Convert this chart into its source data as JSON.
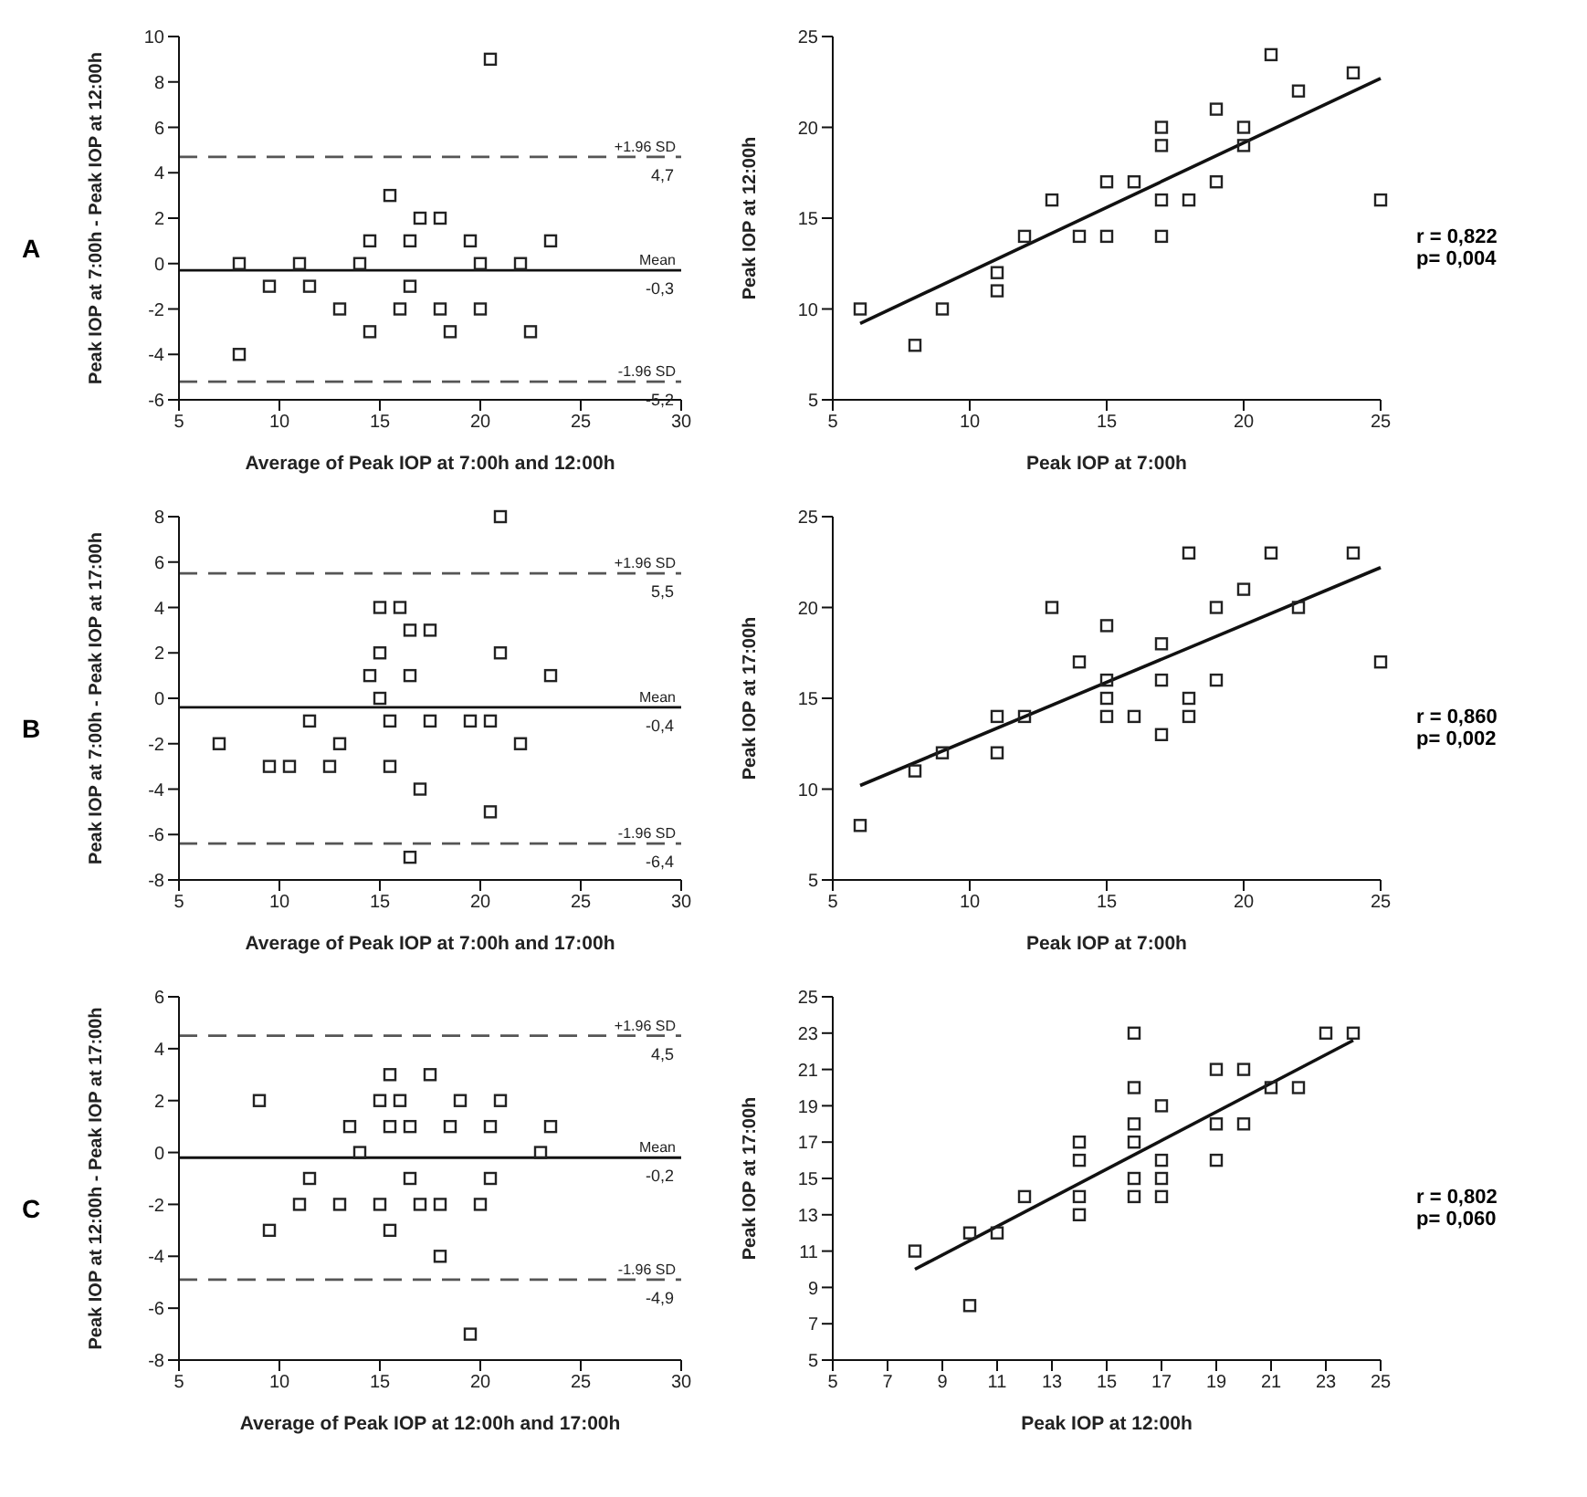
{
  "chart_data": [
    {
      "type": "scatter",
      "xlabel": "Average of Peak IOP at 7:00h and 12:00h",
      "ylabel": "Peak IOP at 7:00h - Peak IOP at 12:00h",
      "xlim": [
        5,
        30
      ],
      "xticks": [
        5,
        10,
        15,
        20,
        25,
        30
      ],
      "ylim": [
        -6,
        10
      ],
      "yticks": [
        -6,
        -4,
        -2,
        0,
        2,
        4,
        6,
        8,
        10
      ],
      "marker": "square",
      "series": [
        {
          "type": "scatter",
          "color": "#222222",
          "x": [
            8,
            8,
            9.5,
            11,
            11.5,
            13,
            14,
            14.5,
            14.5,
            15.5,
            16,
            16.5,
            16.5,
            17,
            18,
            18,
            18.5,
            19.5,
            20,
            20,
            20.5,
            22,
            22.5,
            23.5
          ],
          "values": [
            0,
            -4,
            -1,
            0,
            -1,
            -2,
            0,
            1,
            -3,
            3,
            -2,
            1,
            -1,
            2,
            2,
            -2,
            -3,
            1,
            0,
            -2,
            9,
            0,
            -3,
            1
          ]
        }
      ],
      "ref_lines": [
        {
          "axis": "y",
          "value": 4.7,
          "label": "+1.96 SD",
          "color": "#555555",
          "line_style": "dashed"
        },
        {
          "axis": "y",
          "value": -0.3,
          "label": "Mean",
          "color": "#111111",
          "line_style": "solid"
        },
        {
          "axis": "y",
          "value": -5.2,
          "label": "-1.96 SD",
          "color": "#555555",
          "line_style": "dashed"
        }
      ],
      "annotations": [
        "A",
        {
          "text": "4,7",
          "y": 4.7
        },
        {
          "text": "-0,3",
          "y": -0.3
        },
        {
          "text": "-5,2",
          "y": -5.2
        }
      ]
    },
    {
      "type": "scatter",
      "xlabel": "Peak IOP at 7:00h",
      "ylabel": "Peak IOP at 12:00h",
      "xlim": [
        5,
        25
      ],
      "xticks": [
        5,
        10,
        15,
        20,
        25
      ],
      "ylim": [
        5,
        25
      ],
      "yticks": [
        5,
        10,
        15,
        20,
        25
      ],
      "marker": "square",
      "series": [
        {
          "type": "scatter",
          "color": "#222222",
          "x": [
            6,
            8,
            9,
            11,
            11,
            12,
            13,
            14,
            15,
            15,
            16,
            17,
            17,
            17,
            17,
            18,
            19,
            19,
            20,
            20,
            21,
            22,
            24,
            25
          ],
          "values": [
            10,
            8,
            10,
            12,
            11,
            14,
            16,
            14,
            17,
            14,
            17,
            20,
            19,
            16,
            14,
            16,
            21,
            17,
            20,
            19,
            24,
            22,
            23,
            16
          ]
        },
        {
          "type": "line",
          "marker": "none",
          "color": "#111111",
          "x": [
            6,
            25
          ],
          "values": [
            9.2,
            22.7
          ]
        }
      ],
      "annotations": [
        "r = 0,822",
        "p= 0,004"
      ]
    },
    {
      "type": "scatter",
      "xlabel": "Average of Peak IOP at 7:00h and 17:00h",
      "ylabel": "Peak IOP at 7:00h - Peak IOP at 17:00h",
      "xlim": [
        5,
        30
      ],
      "xticks": [
        5,
        10,
        15,
        20,
        25,
        30
      ],
      "ylim": [
        -8,
        8
      ],
      "yticks": [
        -8,
        -6,
        -4,
        -2,
        0,
        2,
        4,
        6,
        8
      ],
      "marker": "square",
      "series": [
        {
          "type": "scatter",
          "color": "#222222",
          "x": [
            7,
            9.5,
            10.5,
            11.5,
            12.5,
            13,
            14.5,
            15,
            15,
            15,
            15.5,
            15.5,
            16,
            16.5,
            16.5,
            16.5,
            17,
            17.5,
            17.5,
            19.5,
            20.5,
            20.5,
            21,
            21,
            22,
            23.5
          ],
          "values": [
            -2,
            -3,
            -3,
            -1,
            -3,
            -2,
            1,
            4,
            2,
            0,
            -1,
            -3,
            4,
            3,
            1,
            -7,
            -4,
            3,
            -1,
            -1,
            -1,
            -5,
            8,
            2,
            -2,
            1
          ]
        }
      ],
      "ref_lines": [
        {
          "axis": "y",
          "value": 5.5,
          "label": "+1.96 SD",
          "color": "#555555",
          "line_style": "dashed"
        },
        {
          "axis": "y",
          "value": -0.4,
          "label": "Mean",
          "color": "#111111",
          "line_style": "solid"
        },
        {
          "axis": "y",
          "value": -6.4,
          "label": "-1.96 SD",
          "color": "#555555",
          "line_style": "dashed"
        }
      ],
      "annotations": [
        "B",
        {
          "text": "5,5",
          "y": 5.5
        },
        {
          "text": "-0,4",
          "y": -0.4
        },
        {
          "text": "-6,4",
          "y": -6.4
        }
      ]
    },
    {
      "type": "scatter",
      "xlabel": "Peak IOP at 7:00h",
      "ylabel": "Peak IOP at 17:00h",
      "xlim": [
        5,
        25
      ],
      "xticks": [
        5,
        10,
        15,
        20,
        25
      ],
      "ylim": [
        5,
        25
      ],
      "yticks": [
        5,
        10,
        15,
        20,
        25
      ],
      "marker": "square",
      "series": [
        {
          "type": "scatter",
          "color": "#222222",
          "x": [
            6,
            8,
            9,
            11,
            11,
            12,
            13,
            14,
            15,
            15,
            15,
            15,
            16,
            17,
            17,
            17,
            18,
            18,
            18,
            19,
            19,
            20,
            21,
            22,
            24,
            25
          ],
          "values": [
            8,
            11,
            12,
            14,
            12,
            14,
            20,
            17,
            19,
            16,
            15,
            14,
            14,
            18,
            16,
            13,
            23,
            15,
            14,
            20,
            16,
            21,
            23,
            20,
            23,
            17
          ]
        },
        {
          "type": "line",
          "marker": "none",
          "color": "#111111",
          "x": [
            6,
            25
          ],
          "values": [
            10.2,
            22.2
          ]
        }
      ],
      "annotations": [
        "r = 0,860",
        "p= 0,002"
      ]
    },
    {
      "type": "scatter",
      "xlabel": "Average of Peak IOP at 12:00h and 17:00h",
      "ylabel": "Peak IOP at 12:00h - Peak IOP at 17:00h",
      "xlim": [
        5,
        30
      ],
      "xticks": [
        5,
        10,
        15,
        20,
        25,
        30
      ],
      "ylim": [
        -8,
        6
      ],
      "yticks": [
        -8,
        -6,
        -4,
        -2,
        0,
        2,
        4,
        6
      ],
      "marker": "square",
      "series": [
        {
          "type": "scatter",
          "color": "#222222",
          "x": [
            9,
            9.5,
            11,
            11.5,
            13,
            13.5,
            14,
            15,
            15,
            15.5,
            15.5,
            15.5,
            16,
            16.5,
            16.5,
            17,
            17.5,
            18,
            18,
            18.5,
            19,
            19.5,
            20,
            20.5,
            20.5,
            21,
            23,
            23.5
          ],
          "values": [
            2,
            -3,
            -2,
            -1,
            -2,
            1,
            0,
            2,
            -2,
            3,
            1,
            -3,
            2,
            1,
            -1,
            -2,
            3,
            -2,
            -4,
            1,
            2,
            -7,
            -2,
            1,
            -1,
            2,
            0,
            1
          ]
        }
      ],
      "ref_lines": [
        {
          "axis": "y",
          "value": 4.5,
          "label": "+1.96 SD",
          "color": "#555555",
          "line_style": "dashed"
        },
        {
          "axis": "y",
          "value": -0.2,
          "label": "Mean",
          "color": "#111111",
          "line_style": "solid"
        },
        {
          "axis": "y",
          "value": -4.9,
          "label": "-1.96 SD",
          "color": "#555555",
          "line_style": "dashed"
        }
      ],
      "annotations": [
        "C",
        {
          "text": "4,5",
          "y": 4.5
        },
        {
          "text": "-0,2",
          "y": -0.2
        },
        {
          "text": "-4,9",
          "y": -4.9
        }
      ]
    },
    {
      "type": "scatter",
      "xlabel": "Peak IOP at 12:00h",
      "ylabel": "Peak IOP at 17:00h",
      "xlim": [
        5,
        25
      ],
      "xticks": [
        5,
        7,
        9,
        11,
        13,
        15,
        17,
        19,
        21,
        23,
        25
      ],
      "ylim": [
        5,
        25
      ],
      "yticks": [
        5,
        7,
        9,
        11,
        13,
        15,
        17,
        19,
        21,
        23,
        25
      ],
      "marker": "square",
      "series": [
        {
          "type": "scatter",
          "color": "#222222",
          "x": [
            8,
            10,
            10,
            11,
            12,
            14,
            14,
            14,
            14,
            16,
            16,
            16,
            16,
            16,
            16,
            17,
            17,
            17,
            17,
            19,
            19,
            19,
            20,
            20,
            21,
            22,
            23,
            24
          ],
          "values": [
            11,
            12,
            8,
            12,
            14,
            17,
            16,
            14,
            13,
            23,
            20,
            18,
            17,
            15,
            14,
            19,
            16,
            15,
            14,
            21,
            18,
            16,
            21,
            18,
            20,
            20,
            23,
            23
          ]
        },
        {
          "type": "line",
          "marker": "none",
          "color": "#111111",
          "x": [
            8,
            24
          ],
          "values": [
            10,
            22.6
          ]
        }
      ],
      "annotations": [
        "r = 0,802",
        "p= 0,060"
      ]
    }
  ]
}
